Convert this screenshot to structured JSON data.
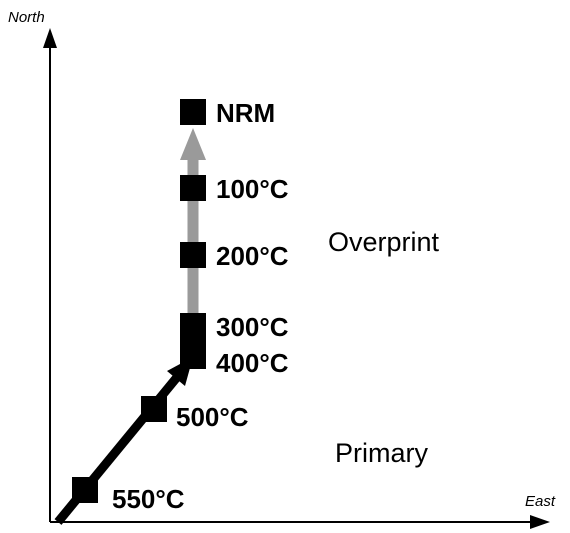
{
  "axes": {
    "north_label": "North",
    "east_label": "East"
  },
  "steps": [
    {
      "label": "NRM"
    },
    {
      "label": "100°C"
    },
    {
      "label": "200°C"
    },
    {
      "label": "300°C"
    },
    {
      "label": "400°C"
    },
    {
      "label": "500°C"
    },
    {
      "label": "550°C"
    }
  ],
  "components": {
    "overprint": "Overprint",
    "primary": "Primary"
  },
  "colors": {
    "overprint_vector": "#9a9a9a",
    "primary_vector": "#000000",
    "marker": "#000000"
  }
}
